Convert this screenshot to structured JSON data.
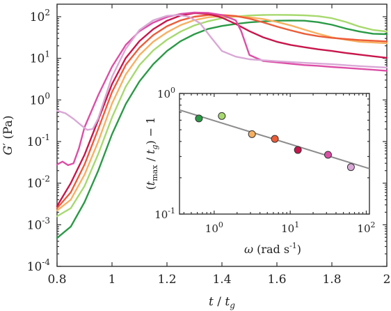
{
  "chart_data": [
    {
      "type": "line",
      "title": "",
      "xlabel": {
        "var": "t",
        "sep": " / ",
        "var2": "t",
        "sub": "g"
      },
      "ylabel": {
        "var": "G",
        "prime": "′",
        "unit": " (Pa)"
      },
      "x_ticks": [
        {
          "value": 0.8,
          "label": "0.8"
        },
        {
          "value": 1.0,
          "label": "1"
        },
        {
          "value": 1.2,
          "label": "1.2"
        },
        {
          "value": 1.4,
          "label": "1.4"
        },
        {
          "value": 1.6,
          "label": "1.6"
        },
        {
          "value": 1.8,
          "label": "1.8"
        },
        {
          "value": 2.0,
          "label": "2"
        }
      ],
      "y_ticks": [
        {
          "value": 0.0001,
          "base": "10",
          "exp": "-4"
        },
        {
          "value": 0.001,
          "base": "10",
          "exp": "-3"
        },
        {
          "value": 0.01,
          "base": "10",
          "exp": "-2"
        },
        {
          "value": 0.1,
          "base": "10",
          "exp": "-1"
        },
        {
          "value": 1,
          "base": "10",
          "exp": "0"
        },
        {
          "value": 10,
          "base": "10",
          "exp": "1"
        },
        {
          "value": 100,
          "base": "10",
          "exp": "2"
        }
      ],
      "xlim": [
        0.8,
        2.0
      ],
      "ylim": [
        0.0001,
        200
      ],
      "yscale": "log",
      "grid": false,
      "series": [
        {
          "color": "#2a9a46",
          "points": [
            [
              0.8,
              0.00048
            ],
            [
              0.85,
              0.0009
            ],
            [
              0.9,
              0.0035
            ],
            [
              0.95,
              0.02
            ],
            [
              1.0,
              0.15
            ],
            [
              1.05,
              0.8
            ],
            [
              1.1,
              2.8
            ],
            [
              1.15,
              7.2
            ],
            [
              1.2,
              15
            ],
            [
              1.25,
              26
            ],
            [
              1.3,
              38
            ],
            [
              1.35,
              51
            ],
            [
              1.4,
              60
            ],
            [
              1.45,
              67
            ],
            [
              1.5,
              73
            ],
            [
              1.55,
              77
            ],
            [
              1.6,
              80
            ],
            [
              1.65,
              81
            ],
            [
              1.7,
              80
            ],
            [
              1.75,
              74
            ],
            [
              1.8,
              64
            ],
            [
              1.85,
              52
            ],
            [
              1.9,
              44
            ],
            [
              1.95,
              39
            ],
            [
              2.0,
              38
            ]
          ]
        },
        {
          "color": "#a7d96e",
          "points": [
            [
              0.8,
              0.0016
            ],
            [
              0.85,
              0.0025
            ],
            [
              0.9,
              0.0085
            ],
            [
              0.95,
              0.05
            ],
            [
              1.0,
              0.38
            ],
            [
              1.05,
              2.1
            ],
            [
              1.1,
              6.9
            ],
            [
              1.15,
              15.5
            ],
            [
              1.2,
              28
            ],
            [
              1.25,
              44
            ],
            [
              1.3,
              62
            ],
            [
              1.35,
              78
            ],
            [
              1.4,
              92
            ],
            [
              1.45,
              101
            ],
            [
              1.5,
              107
            ],
            [
              1.55,
              110
            ],
            [
              1.6,
              111
            ],
            [
              1.65,
              110
            ],
            [
              1.7,
              108
            ],
            [
              1.75,
              103
            ],
            [
              1.8,
              92
            ],
            [
              1.85,
              75
            ],
            [
              1.9,
              58
            ],
            [
              1.95,
              48
            ],
            [
              2.0,
              44
            ]
          ]
        },
        {
          "color": "#f7b060",
          "points": [
            [
              0.8,
              0.0022
            ],
            [
              0.85,
              0.004
            ],
            [
              0.9,
              0.016
            ],
            [
              0.95,
              0.1
            ],
            [
              1.0,
              0.82
            ],
            [
              1.05,
              4.1
            ],
            [
              1.1,
              12
            ],
            [
              1.15,
              25
            ],
            [
              1.2,
              42
            ],
            [
              1.25,
              63
            ],
            [
              1.3,
              83
            ],
            [
              1.35,
              97
            ],
            [
              1.4,
              103
            ],
            [
              1.45,
              102
            ],
            [
              1.5,
              97
            ],
            [
              1.55,
              88
            ],
            [
              1.6,
              75
            ],
            [
              1.65,
              62
            ],
            [
              1.7,
              49
            ],
            [
              1.75,
              39
            ],
            [
              1.8,
              32
            ],
            [
              1.85,
              28
            ],
            [
              1.9,
              25
            ],
            [
              1.95,
              24
            ],
            [
              2.0,
              23
            ]
          ]
        },
        {
          "color": "#ec5c38",
          "points": [
            [
              0.8,
              0.0025
            ],
            [
              0.85,
              0.006
            ],
            [
              0.9,
              0.028
            ],
            [
              0.95,
              0.2
            ],
            [
              1.0,
              1.55
            ],
            [
              1.05,
              7
            ],
            [
              1.1,
              18
            ],
            [
              1.15,
              36
            ],
            [
              1.2,
              59
            ],
            [
              1.25,
              82
            ],
            [
              1.3,
              100
            ],
            [
              1.35,
              110
            ],
            [
              1.4,
              110
            ],
            [
              1.45,
              104
            ],
            [
              1.5,
              90
            ],
            [
              1.55,
              73
            ],
            [
              1.6,
              58
            ],
            [
              1.65,
              47
            ],
            [
              1.7,
              39
            ],
            [
              1.75,
              34
            ],
            [
              1.8,
              31
            ],
            [
              1.85,
              29
            ],
            [
              1.9,
              27.5
            ],
            [
              1.95,
              26.5
            ],
            [
              2.0,
              25.5
            ]
          ]
        },
        {
          "color": "#c8164c",
          "points": [
            [
              0.8,
              0.0028
            ],
            [
              0.85,
              0.01
            ],
            [
              0.9,
              0.048
            ],
            [
              0.95,
              0.33
            ],
            [
              1.0,
              2.4
            ],
            [
              1.05,
              10.2
            ],
            [
              1.1,
              26
            ],
            [
              1.15,
              50
            ],
            [
              1.2,
              80
            ],
            [
              1.25,
              107
            ],
            [
              1.3,
              122
            ],
            [
              1.35,
              117
            ],
            [
              1.4,
              95
            ],
            [
              1.45,
              67
            ],
            [
              1.5,
              45
            ],
            [
              1.55,
              32
            ],
            [
              1.6,
              25
            ],
            [
              1.65,
              21
            ],
            [
              1.7,
              18.5
            ],
            [
              1.75,
              16.5
            ],
            [
              1.8,
              15
            ],
            [
              1.85,
              13.5
            ],
            [
              1.9,
              12.3
            ],
            [
              1.95,
              11.2
            ],
            [
              2.0,
              10.3
            ]
          ]
        },
        {
          "color": "#dd4ea6",
          "points": [
            [
              0.8,
              0.028
            ],
            [
              0.82,
              0.033
            ],
            [
              0.84,
              0.027
            ],
            [
              0.86,
              0.03
            ],
            [
              0.88,
              0.07
            ],
            [
              0.9,
              0.22
            ],
            [
              0.95,
              1.3
            ],
            [
              1.0,
              6.3
            ],
            [
              1.05,
              21
            ],
            [
              1.1,
              45
            ],
            [
              1.15,
              72
            ],
            [
              1.2,
              98
            ],
            [
              1.25,
              117
            ],
            [
              1.3,
              126
            ],
            [
              1.35,
              124
            ],
            [
              1.4,
              110
            ],
            [
              1.45,
              82
            ],
            [
              1.47,
              45
            ],
            [
              1.5,
              12
            ],
            [
              1.55,
              8.6
            ],
            [
              1.6,
              8.0
            ],
            [
              1.65,
              7.4
            ],
            [
              1.7,
              6.9
            ],
            [
              1.75,
              6.6
            ],
            [
              1.8,
              6.2
            ],
            [
              1.85,
              5.9
            ],
            [
              1.9,
              5.6
            ],
            [
              1.95,
              5.3
            ],
            [
              2.0,
              5.0
            ]
          ]
        },
        {
          "color": "#d9a8d6",
          "points": [
            [
              0.8,
              0.55
            ],
            [
              0.83,
              0.48
            ],
            [
              0.86,
              0.35
            ],
            [
              0.89,
              0.24
            ],
            [
              0.91,
              0.19
            ],
            [
              0.93,
              0.2
            ],
            [
              0.95,
              0.36
            ],
            [
              1.0,
              3.6
            ],
            [
              1.05,
              17
            ],
            [
              1.1,
              48
            ],
            [
              1.15,
              82
            ],
            [
              1.2,
              105
            ],
            [
              1.24,
              110
            ],
            [
              1.28,
              100
            ],
            [
              1.32,
              70
            ],
            [
              1.36,
              32
            ],
            [
              1.4,
              15
            ],
            [
              1.45,
              11
            ],
            [
              1.5,
              9.5
            ],
            [
              1.6,
              8.5
            ],
            [
              1.7,
              7.8
            ],
            [
              1.8,
              7.2
            ],
            [
              1.9,
              6.5
            ],
            [
              2.0,
              6.0
            ]
          ]
        }
      ]
    },
    {
      "type": "scatter",
      "title": "",
      "xlabel": {
        "var": "ω",
        "unit": " (rad s",
        "exp": "-1",
        "close": ")"
      },
      "ylabel": {
        "open": "(",
        "var": "t",
        "sub": "max",
        "sep": " / ",
        "var2": "t",
        "sub2": "g",
        "close": ") − 1"
      },
      "xscale": "log",
      "yscale": "log",
      "xlim": [
        0.35,
        110
      ],
      "ylim": [
        0.1,
        1.0
      ],
      "x_ticks": [
        {
          "value": 1,
          "base": "10",
          "exp": "0"
        },
        {
          "value": 10,
          "base": "10",
          "exp": "1"
        },
        {
          "value": 100,
          "base": "10",
          "exp": "2"
        }
      ],
      "y_ticks": [
        {
          "value": 0.1,
          "base": "10",
          "exp": "-1"
        },
        {
          "value": 1,
          "base": "10",
          "exp": "0"
        }
      ],
      "points": [
        {
          "x": 0.63,
          "y": 0.62,
          "color": "#2a9a46"
        },
        {
          "x": 1.26,
          "y": 0.65,
          "color": "#a7d96e"
        },
        {
          "x": 3.14,
          "y": 0.46,
          "color": "#f7b060"
        },
        {
          "x": 6.28,
          "y": 0.42,
          "color": "#ec5c38"
        },
        {
          "x": 12.6,
          "y": 0.34,
          "color": "#c8164c"
        },
        {
          "x": 31.4,
          "y": 0.31,
          "color": "#dd4ea6"
        },
        {
          "x": 62.8,
          "y": 0.245,
          "color": "#d9a8d6"
        }
      ],
      "fit_line": {
        "color": "#8c8c8c",
        "x": [
          0.35,
          110
        ],
        "y": [
          0.73,
          0.238
        ]
      }
    }
  ]
}
